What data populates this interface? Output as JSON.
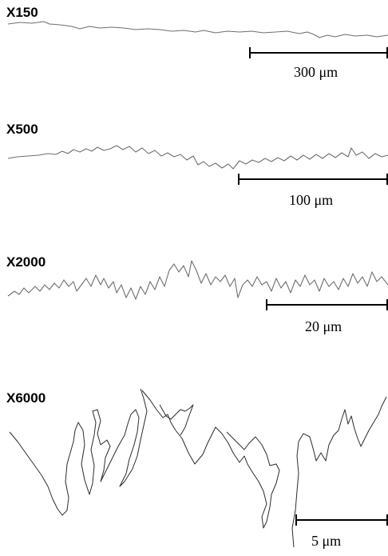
{
  "panels": [
    {
      "magnification": "X150",
      "scale_label": "300 μm"
    },
    {
      "magnification": "X500",
      "scale_label": "100 μm"
    },
    {
      "magnification": "X2000",
      "scale_label": "20 μm"
    },
    {
      "magnification": "X6000",
      "scale_label": "5 μm"
    }
  ],
  "colors": {
    "profile_line": "#6f6f6f",
    "profile_line_dark": "#2b2b2b",
    "scale_bar": "#000000"
  }
}
